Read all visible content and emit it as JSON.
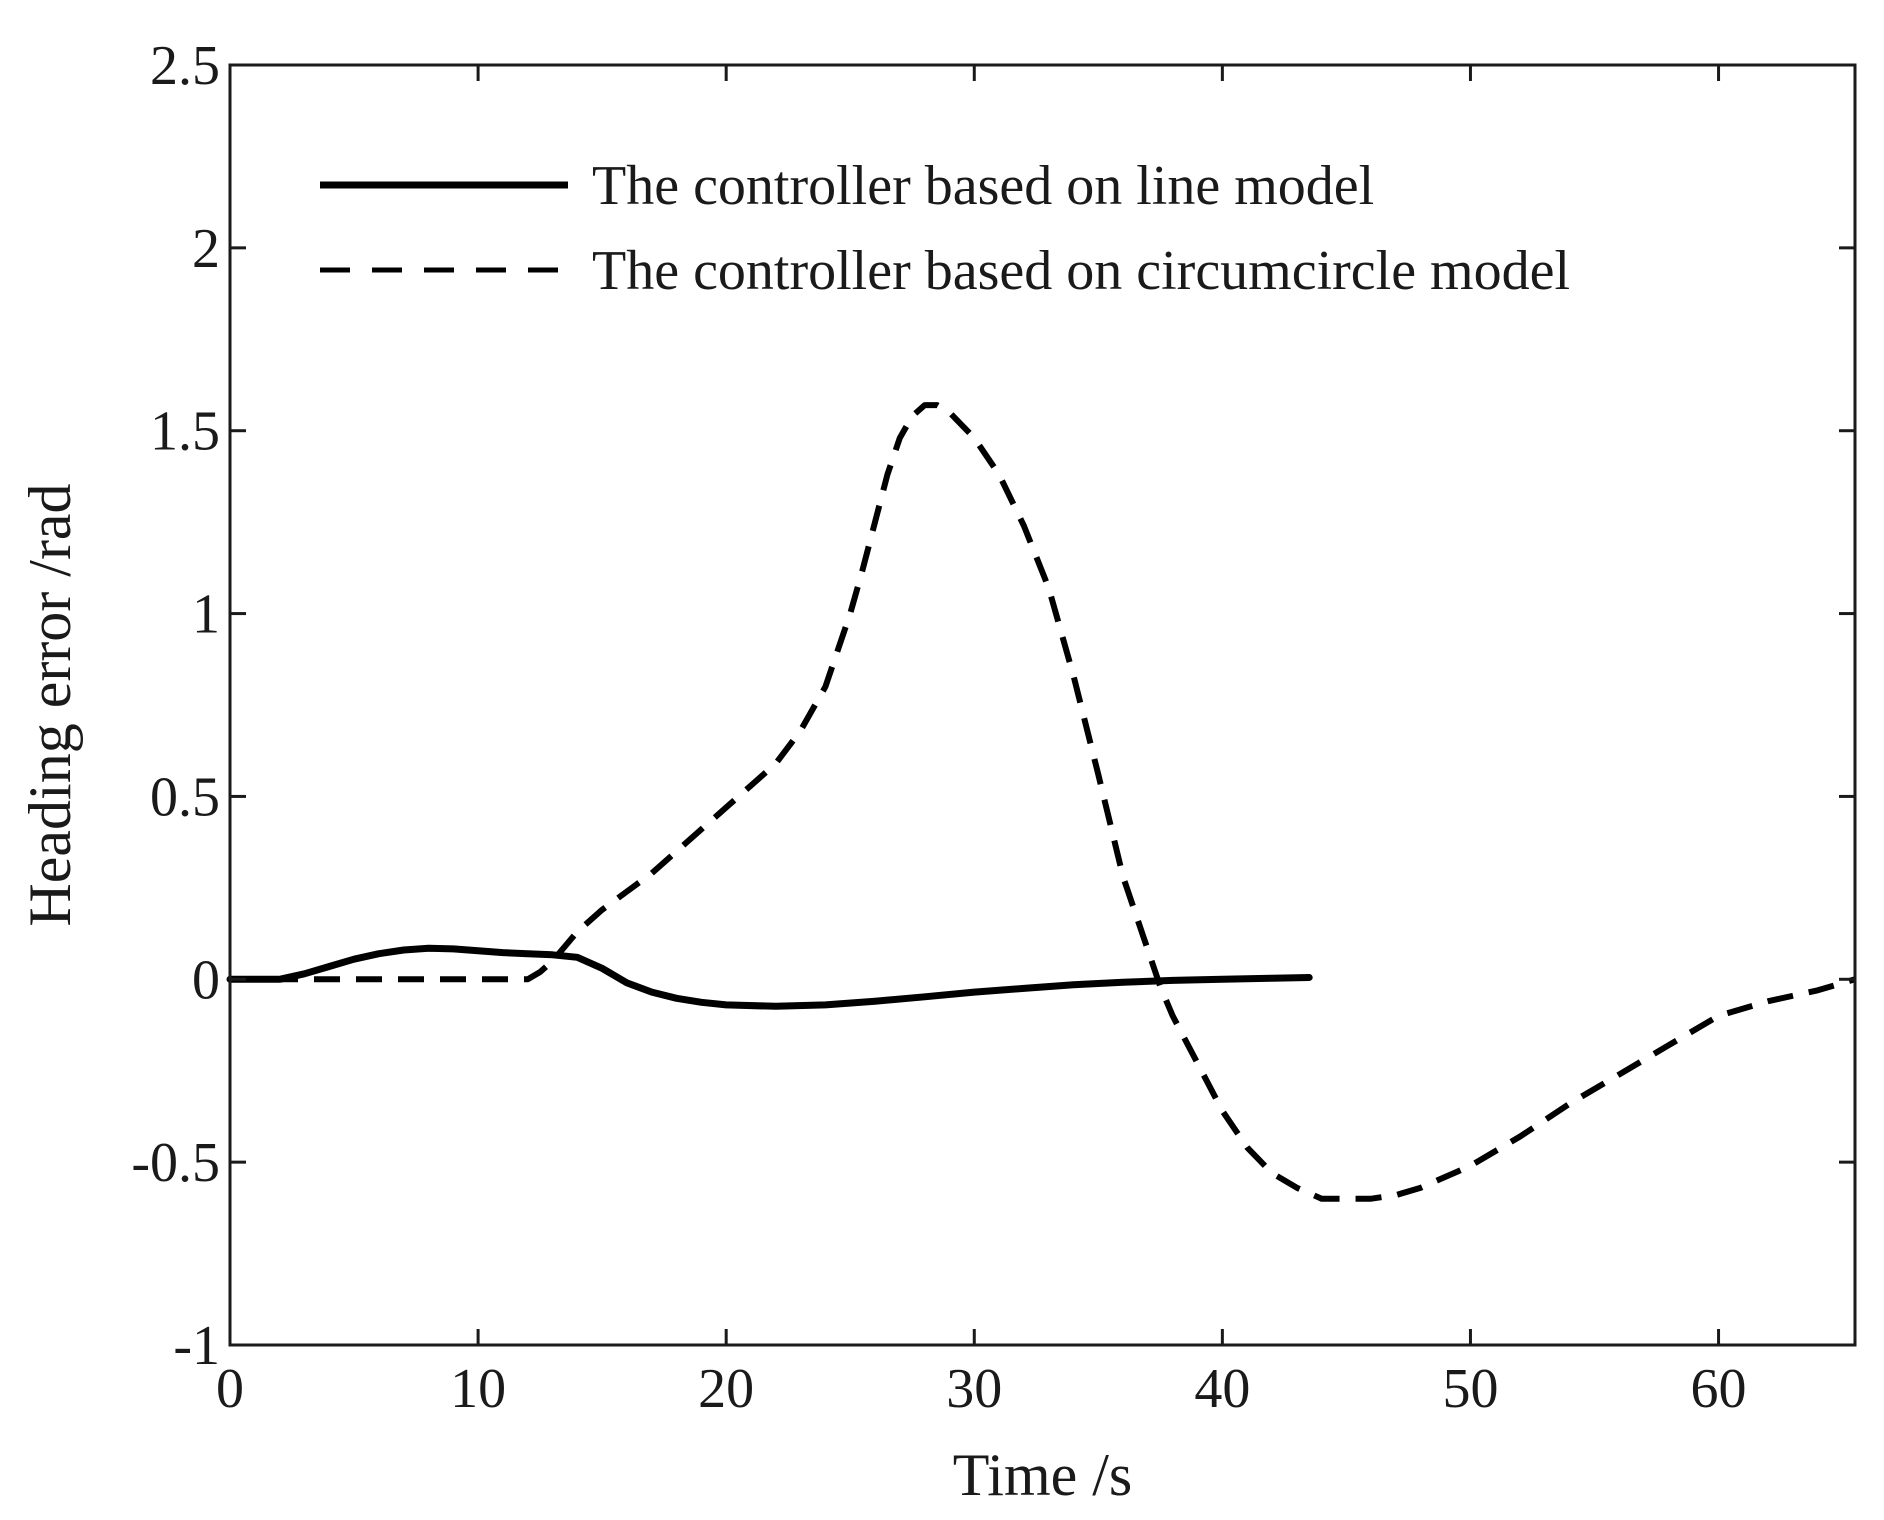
{
  "chart_data": {
    "type": "line",
    "title": "",
    "xlabel": "Time /s",
    "ylabel": "Heading error /rad",
    "xlim": [
      0,
      65.5
    ],
    "ylim": [
      -1,
      2.5
    ],
    "xticks": [
      0,
      10,
      20,
      30,
      40,
      50,
      60
    ],
    "yticks": [
      -1,
      -0.5,
      0,
      0.5,
      1,
      1.5,
      2,
      2.5
    ],
    "xtick_labels": [
      "0",
      "10",
      "20",
      "30",
      "40",
      "50",
      "60"
    ],
    "ytick_labels": [
      "-1",
      "-0.5",
      "0",
      "0.5",
      "1",
      "1.5",
      "2",
      "2.5"
    ],
    "grid": false,
    "legend_position": "top-left",
    "colors": {
      "line": "#000000",
      "axes": "#1a1a1a",
      "background": "#ffffff"
    },
    "series": [
      {
        "name": "The controller based on line model",
        "style": "solid",
        "x": [
          0,
          2,
          3,
          4,
          5,
          6,
          7,
          8,
          9,
          10,
          11,
          12,
          13,
          14,
          15,
          16,
          17,
          18,
          19,
          20,
          22,
          24,
          26,
          28,
          30,
          32,
          34,
          36,
          38,
          40,
          42,
          43.5
        ],
        "y": [
          0,
          0,
          0.015,
          0.035,
          0.055,
          0.07,
          0.08,
          0.085,
          0.083,
          0.078,
          0.073,
          0.07,
          0.067,
          0.06,
          0.03,
          -0.01,
          -0.035,
          -0.052,
          -0.063,
          -0.07,
          -0.074,
          -0.07,
          -0.06,
          -0.048,
          -0.035,
          -0.025,
          -0.015,
          -0.008,
          -0.003,
          0,
          0.003,
          0.005
        ]
      },
      {
        "name": "The controller based on circumcircle model",
        "style": "dashed",
        "x": [
          0,
          12,
          12.5,
          13,
          13.5,
          14,
          15,
          16,
          17,
          18,
          19,
          20,
          21,
          22,
          23,
          24,
          25,
          25.5,
          26,
          26.5,
          27,
          27.5,
          28,
          28.5,
          29,
          30,
          31,
          32,
          33,
          34,
          35,
          36,
          37,
          37.5,
          38,
          39,
          40,
          41,
          42,
          43,
          44,
          45,
          46,
          47,
          48,
          50,
          52,
          54,
          56,
          58,
          60,
          62,
          64,
          65.5
        ],
        "y": [
          0,
          0,
          0.02,
          0.05,
          0.09,
          0.13,
          0.19,
          0.24,
          0.29,
          0.35,
          0.41,
          0.47,
          0.53,
          0.59,
          0.68,
          0.8,
          1.0,
          1.12,
          1.25,
          1.38,
          1.48,
          1.54,
          1.57,
          1.57,
          1.55,
          1.48,
          1.38,
          1.24,
          1.07,
          0.83,
          0.56,
          0.28,
          0.08,
          -0.02,
          -0.1,
          -0.23,
          -0.36,
          -0.46,
          -0.53,
          -0.57,
          -0.6,
          -0.6,
          -0.6,
          -0.59,
          -0.57,
          -0.51,
          -0.43,
          -0.34,
          -0.26,
          -0.18,
          -0.1,
          -0.06,
          -0.03,
          0
        ]
      }
    ]
  }
}
